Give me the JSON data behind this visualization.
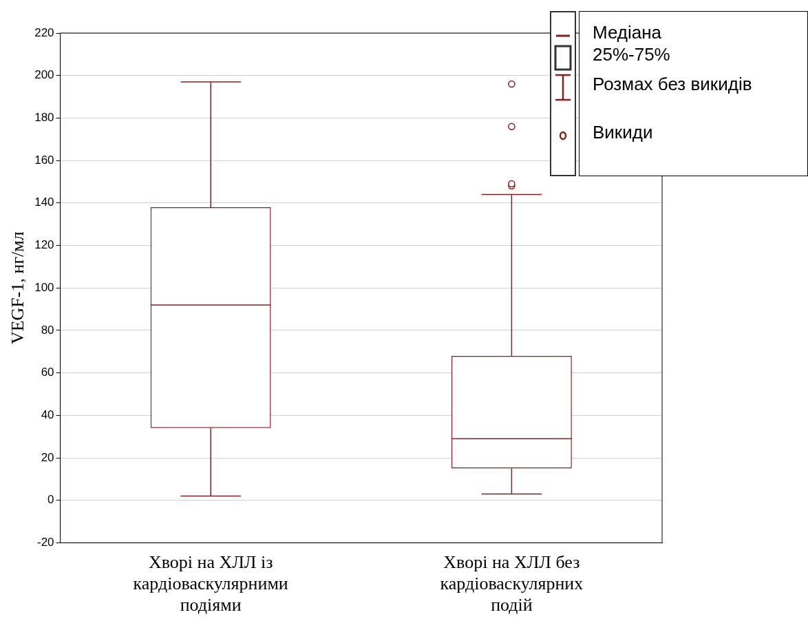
{
  "chart_data": {
    "type": "box",
    "ylabel": "VEGF-1, нг/мл",
    "categories": [
      "Хворі на ХЛЛ із кардіоваскулярними подіями",
      "Хворі на ХЛЛ без кардіоваскулярних подій"
    ],
    "boxes": [
      {
        "low": 2,
        "q1": 34,
        "median": 92,
        "q3": 138,
        "high": 197
      },
      {
        "low": 3,
        "q1": 15,
        "median": 29,
        "q3": 68,
        "high": 144,
        "outliers": [
          148,
          149,
          176,
          196
        ]
      }
    ],
    "color": "#8b1c1c",
    "ylim": [
      -20,
      220
    ],
    "yticks": [
      -20,
      0,
      20,
      40,
      60,
      80,
      100,
      120,
      140,
      160,
      180,
      200,
      220
    ],
    "grid": "y",
    "annotations": [
      "Медіана",
      "25%-75%",
      "Розмах без викидів",
      "Викиди"
    ]
  }
}
